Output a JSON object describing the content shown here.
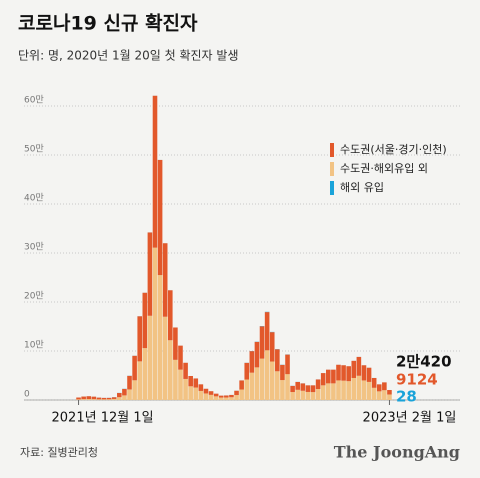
{
  "chart_data": {
    "type": "bar",
    "title": "코로나19 신규 확진자",
    "subtitle": "단위: 명, 2020년 1월 20일 첫 확진자 발생",
    "categories": [
      "2021년 12월 1일",
      null,
      null,
      null,
      null,
      null,
      null,
      null,
      null,
      null,
      null,
      null,
      null,
      null,
      null,
      null,
      null,
      null,
      null,
      null,
      null,
      null,
      null,
      null,
      null,
      null,
      null,
      null,
      null,
      null,
      null,
      null,
      null,
      null,
      null,
      null,
      null,
      null,
      null,
      null,
      null,
      null,
      null,
      null,
      null,
      null,
      null,
      null,
      null,
      null,
      null,
      null,
      null,
      null,
      null,
      null,
      null,
      null,
      null,
      null,
      null,
      "2023년 2월 1일"
    ],
    "series": [
      {
        "name": "수도권(서울·경기·인천)",
        "color": "#e2582b",
        "values": [
          3830,
          5300,
          5800,
          5100,
          3600,
          3000,
          2900,
          3500,
          8500,
          13200,
          27700,
          50000,
          92000,
          113000,
          170000,
          310000,
          235000,
          150000,
          102000,
          66000,
          49000,
          33000,
          21000,
          18500,
          13500,
          9600,
          7500,
          5500,
          3900,
          4100,
          4700,
          8800,
          18500,
          34000,
          44000,
          52000,
          66000,
          78000,
          60000,
          45000,
          31000,
          40000,
          12500,
          16000,
          15000,
          13500,
          13800,
          19500,
          25000,
          28000,
          28000,
          32000,
          31500,
          30500,
          35000,
          38500,
          31000,
          29000,
          20000,
          14300,
          16000,
          9124
        ]
      },
      {
        "name": "수도권·해외유입 외",
        "color": "#f2c384",
        "values": [
          1240,
          1760,
          1940,
          1730,
          1320,
          1300,
          1450,
          2100,
          5750,
          9400,
          21550,
          40200,
          78850,
          105880,
          171900,
          310920,
          254930,
          169940,
          121950,
          81960,
          61960,
          42970,
          27970,
          25470,
          18470,
          13360,
          10460,
          7450,
          5040,
          5130,
          5620,
          10110,
          21400,
          41800,
          55750,
          66600,
          84500,
          101400,
          78500,
          58600,
          40650,
          52700,
          16250,
          20800,
          18850,
          16400,
          16120,
          22430,
          29940,
          33940,
          33940,
          39940,
          39440,
          38440,
          44940,
          49430,
          39920,
          36910,
          24900,
          17640,
          19960,
          11268
        ]
      },
      {
        "name": "해외 유입",
        "color": "#1aa3d9",
        "values": [
          30,
          40,
          60,
          70,
          80,
          100,
          150,
          200,
          250,
          300,
          250,
          200,
          150,
          120,
          100,
          80,
          70,
          60,
          50,
          40,
          40,
          30,
          30,
          30,
          30,
          40,
          40,
          50,
          60,
          70,
          80,
          90,
          100,
          200,
          250,
          400,
          500,
          600,
          500,
          400,
          350,
          300,
          250,
          200,
          150,
          100,
          80,
          70,
          60,
          60,
          60,
          60,
          60,
          60,
          60,
          70,
          80,
          90,
          100,
          60,
          40,
          28
        ]
      }
    ],
    "annotations": [
      "2만420"
    ],
    "ylim": [
      0,
      630000
    ],
    "yticks": [
      0,
      {
        "value": 100000,
        "label": "10만"
      },
      {
        "value": 200000,
        "label": "20만"
      },
      {
        "value": 300000,
        "label": "30만"
      },
      {
        "value": 400000,
        "label": "40만"
      },
      {
        "value": 500000,
        "label": "50만"
      },
      {
        "value": 600000,
        "label": "60만"
      }
    ],
    "grid": true,
    "legend": "upper right",
    "source": "자료: 질병관리청",
    "brand": "The JoongAng"
  }
}
